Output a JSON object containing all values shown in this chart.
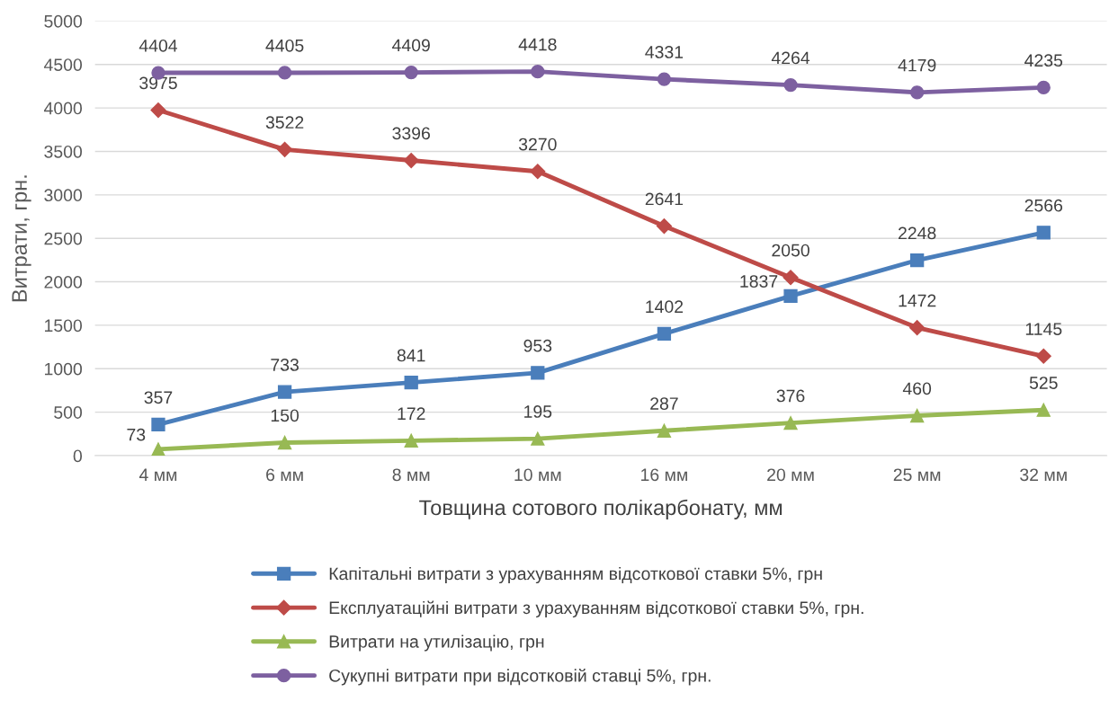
{
  "chart_data": {
    "type": "line",
    "xlabel": "Товщина сотового полікарбонату, мм",
    "ylabel": "Витрати, грн.",
    "categories": [
      "4 мм",
      "6 мм",
      "8 мм",
      "10 мм",
      "16 мм",
      "20 мм",
      "25 мм",
      "32 мм"
    ],
    "series": [
      {
        "name": "Капітальні витрати з урахуванням відсоткової ставки 5%, грн",
        "color": "#4a7ebb",
        "marker": "square",
        "values": [
          357,
          733,
          841,
          953,
          1402,
          1837,
          2248,
          2566
        ]
      },
      {
        "name": "Експлуатаційні витрати з урахуванням відсоткової ставки 5%, грн.",
        "color": "#be4b48",
        "marker": "diamond",
        "values": [
          3975,
          3522,
          3396,
          3270,
          2641,
          2050,
          1472,
          1145
        ]
      },
      {
        "name": "Витрати на утилізацію, грн",
        "color": "#98b954",
        "marker": "triangle",
        "values": [
          73,
          150,
          172,
          195,
          287,
          376,
          460,
          525
        ]
      },
      {
        "name": "Сукупні витрати при відсотковій ставці 5%, грн.",
        "color": "#7d60a0",
        "marker": "circle",
        "values": [
          4404,
          4405,
          4409,
          4418,
          4331,
          4264,
          4179,
          4235
        ]
      }
    ],
    "ylim": [
      0,
      5000
    ],
    "yticks": [
      0,
      500,
      1000,
      1500,
      2000,
      2500,
      3000,
      3500,
      4000,
      4500,
      5000
    ],
    "grid": "y",
    "legend": "bottom",
    "data_labels": true,
    "line_style": "solid"
  }
}
